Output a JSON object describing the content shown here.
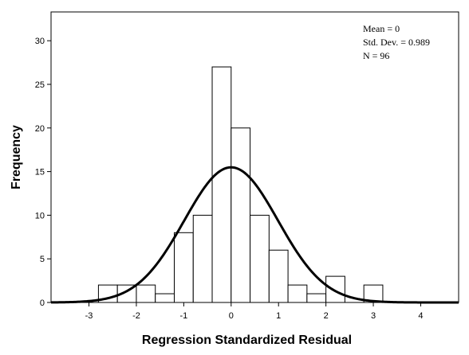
{
  "chart_data": {
    "type": "bar",
    "subtype": "histogram-with-normal-curve",
    "xlabel": "Regression Standardized Residual",
    "ylabel": "Frequency",
    "x_ticks": [
      "-3",
      "-2",
      "-1",
      "0",
      "1",
      "2",
      "3",
      "4"
    ],
    "y_ticks": [
      "0",
      "5",
      "10",
      "15",
      "20",
      "25",
      "30"
    ],
    "xlim": [
      -3.8,
      4.8
    ],
    "ylim": [
      0,
      33.3
    ],
    "grid": false,
    "bin_width": 0.4,
    "bins": [
      {
        "x0": -2.8,
        "x1": -2.4,
        "count": 2
      },
      {
        "x0": -2.4,
        "x1": -2.0,
        "count": 2
      },
      {
        "x0": -2.0,
        "x1": -1.6,
        "count": 2
      },
      {
        "x0": -1.6,
        "x1": -1.2,
        "count": 1
      },
      {
        "x0": -1.2,
        "x1": -0.8,
        "count": 8
      },
      {
        "x0": -0.8,
        "x1": -0.4,
        "count": 10
      },
      {
        "x0": -0.4,
        "x1": 0.0,
        "count": 27
      },
      {
        "x0": 0.0,
        "x1": 0.4,
        "count": 20
      },
      {
        "x0": 0.4,
        "x1": 0.8,
        "count": 10
      },
      {
        "x0": 0.8,
        "x1": 1.2,
        "count": 6
      },
      {
        "x0": 1.2,
        "x1": 1.6,
        "count": 2
      },
      {
        "x0": 1.6,
        "x1": 2.0,
        "count": 1
      },
      {
        "x0": 2.0,
        "x1": 2.4,
        "count": 3
      },
      {
        "x0": 2.4,
        "x1": 2.8,
        "count": 0
      },
      {
        "x0": 2.8,
        "x1": 3.2,
        "count": 2
      }
    ],
    "normal_curve": {
      "mean": 0,
      "std": 0.989,
      "n": 96
    },
    "stats_box": {
      "position": "top-right",
      "lines": [
        "Mean = 0",
        "Std. Dev. = 0.989",
        "N = 96"
      ]
    }
  }
}
